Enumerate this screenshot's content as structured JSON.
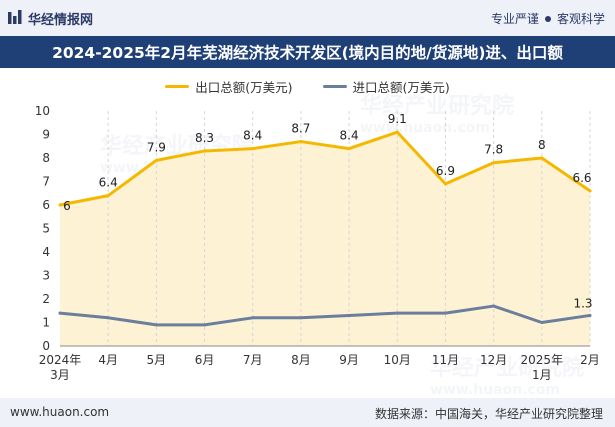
{
  "header": {
    "brand_icon": "bar-logo-icon",
    "brand_name": "华经情报网",
    "tagline_left": "专业严谨",
    "tagline_right": "客观科学"
  },
  "title": "2024-2025年2月年芜湖经济技术开发区(境内目的地/货源地)进、出口额",
  "footer": {
    "website": "www.huaon.com",
    "source": "数据来源：中国海关，华经产业研究院整理"
  },
  "watermark": {
    "text": "华经产业研究院",
    "url": "www.huaon.com"
  },
  "colors": {
    "export": "#f5b800",
    "export_fill": "#fdf2d4",
    "import": "#6b7f9c",
    "title_bar": "#1f3f77",
    "header_bg": "#eef1f7"
  },
  "chart_data": {
    "type": "line",
    "categories": [
      [
        "2024年",
        "3月"
      ],
      [
        "4月"
      ],
      [
        "5月"
      ],
      [
        "6月"
      ],
      [
        "7月"
      ],
      [
        "8月"
      ],
      [
        "9月"
      ],
      [
        "10月"
      ],
      [
        "11月"
      ],
      [
        "12月"
      ],
      [
        "2025年",
        "1月"
      ],
      [
        "2月"
      ]
    ],
    "series": [
      {
        "name": "出口总额(万美元)",
        "values": [
          6,
          6.4,
          7.9,
          8.3,
          8.4,
          8.7,
          8.4,
          9.1,
          6.9,
          7.8,
          8,
          6.6
        ],
        "labels": [
          "6",
          "6.4",
          "7.9",
          "8.3",
          "8.4",
          "8.7",
          "8.4",
          "9.1",
          "6.9",
          "7.8",
          "8",
          "6.6"
        ],
        "area": true
      },
      {
        "name": "进口总额(万美元)",
        "values": [
          1.4,
          1.2,
          0.9,
          0.9,
          1.2,
          1.2,
          1.3,
          1.4,
          1.4,
          1.7,
          1.0,
          1.3
        ],
        "labels": [
          "",
          "",
          "",
          "",
          "",
          "",
          "",
          "",
          "",
          "",
          "",
          "1.3"
        ],
        "area": false
      }
    ],
    "ylim": [
      0,
      10
    ],
    "yticks": [
      0,
      1,
      2,
      3,
      4,
      5,
      6,
      7,
      8,
      9,
      10
    ],
    "grid": "vertical-dashed",
    "legend_position": "top-center"
  }
}
